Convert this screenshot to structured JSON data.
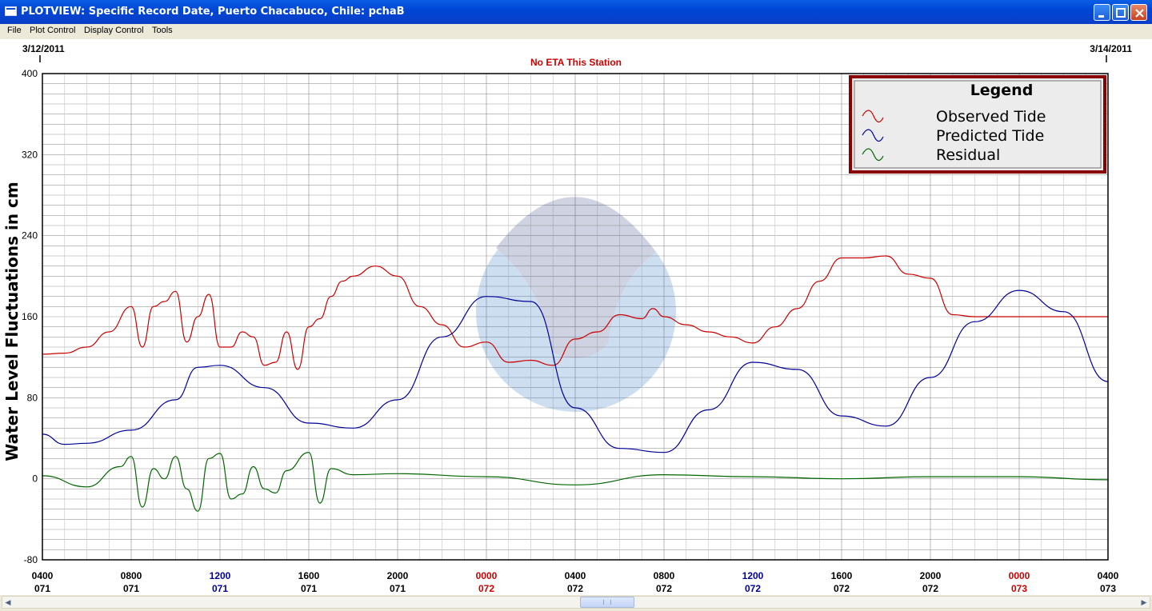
{
  "window": {
    "title": "PLOTVIEW: Specific Record Date, Puerto Chacabuco, Chile: pchaB",
    "menu": [
      "File",
      "Plot Control",
      "Display Control",
      "Tools"
    ]
  },
  "header": {
    "date_start": "3/12/2011",
    "date_end": "3/14/2011",
    "eta_text": "No ETA This Station"
  },
  "colors": {
    "observed": "#cc0000",
    "predicted": "#000099",
    "residual": "#006600",
    "day_change": "#cc0000",
    "noon": "#000099",
    "legend_border": "#880000"
  },
  "chart_data": {
    "type": "line",
    "title": "",
    "ylabel": "Water Level Fluctuations in cm",
    "xlabel": "",
    "ylim": [
      -80,
      400
    ],
    "yticks": [
      400,
      320,
      240,
      160,
      80,
      0,
      -80
    ],
    "xlim_hours": [
      0,
      48
    ],
    "grid": true,
    "x_tick_labels": [
      {
        "time": "0400",
        "day": "071"
      },
      {
        "time": "0800",
        "day": "071"
      },
      {
        "time": "1200",
        "day": "071"
      },
      {
        "time": "1600",
        "day": "071"
      },
      {
        "time": "2000",
        "day": "071"
      },
      {
        "time": "0000",
        "day": "072"
      },
      {
        "time": "0400",
        "day": "072"
      },
      {
        "time": "0800",
        "day": "072"
      },
      {
        "time": "1200",
        "day": "072"
      },
      {
        "time": "1600",
        "day": "072"
      },
      {
        "time": "2000",
        "day": "072"
      },
      {
        "time": "0000",
        "day": "073"
      },
      {
        "time": "0400",
        "day": "073"
      }
    ],
    "legend": {
      "title": "Legend",
      "position": "top-right",
      "entries": [
        "Observed Tide",
        "Predicted Tide",
        "Residual"
      ]
    },
    "series": [
      {
        "name": "Observed Tide",
        "x": [
          "071 0400",
          "071 0500",
          "071 0600",
          "071 0700",
          "071 0800",
          "071 0830",
          "071 0900",
          "071 0930",
          "071 1000",
          "071 1030",
          "071 1100",
          "071 1130",
          "071 1200",
          "071 1230",
          "071 1300",
          "071 1330",
          "071 1400",
          "071 1430",
          "071 1500",
          "071 1530",
          "071 1600",
          "071 1630",
          "071 1700",
          "071 1730",
          "071 1800",
          "071 1900",
          "071 2000",
          "071 2100",
          "071 2200",
          "071 2300",
          "072 0000",
          "072 0100",
          "072 0200",
          "072 0300",
          "072 0400",
          "072 0500",
          "072 0600",
          "072 0700",
          "072 0730",
          "072 0800",
          "072 0900",
          "072 1000",
          "072 1100",
          "072 1200",
          "072 1300",
          "072 1400",
          "072 1500",
          "072 1600",
          "072 1700",
          "072 1800",
          "072 1900",
          "072 2000",
          "072 2100",
          "072 2200",
          "072 2300",
          "073 0000",
          "073 0100",
          "073 0200",
          "073 0300",
          "073 0400"
        ],
        "values": [
          123,
          124,
          130,
          145,
          170,
          130,
          170,
          175,
          185,
          135,
          160,
          182,
          130,
          130,
          145,
          140,
          112,
          115,
          145,
          108,
          150,
          158,
          180,
          195,
          200,
          210,
          200,
          170,
          152,
          130,
          135,
          115,
          117,
          112,
          138,
          145,
          162,
          158,
          168,
          160,
          152,
          145,
          140,
          134,
          150,
          168,
          195,
          218,
          218,
          220,
          202,
          198,
          162,
          160,
          160,
          160,
          160,
          160,
          160,
          160
        ]
      },
      {
        "name": "Predicted Tide",
        "amplitudes": "two semidiurnal cycles",
        "x": [
          "071 0400",
          "071 0500",
          "071 0600",
          "071 0800",
          "071 1000",
          "071 1100",
          "071 1200",
          "071 1400",
          "071 1600",
          "071 1800",
          "071 2000",
          "071 2200",
          "072 0000",
          "072 0200",
          "072 0400",
          "072 0600",
          "072 0800",
          "072 1000",
          "072 1200",
          "072 1400",
          "072 1600",
          "072 1800",
          "072 2000",
          "072 2200",
          "073 0000",
          "073 0200",
          "073 0400"
        ],
        "values": [
          44,
          34,
          35,
          48,
          78,
          110,
          112,
          90,
          55,
          50,
          78,
          140,
          180,
          175,
          70,
          30,
          26,
          68,
          115,
          108,
          62,
          52,
          100,
          155,
          186,
          165,
          96
        ]
      },
      {
        "name": "Residual",
        "x": [
          "071 0400",
          "071 0600",
          "071 0730",
          "071 0800",
          "071 0830",
          "071 0900",
          "071 0930",
          "071 1000",
          "071 1030",
          "071 1100",
          "071 1130",
          "071 1200",
          "071 1230",
          "071 1300",
          "071 1330",
          "071 1400",
          "071 1430",
          "071 1500",
          "071 1600",
          "071 1630",
          "071 1700",
          "071 1800",
          "071 2000",
          "072 0000",
          "072 0400",
          "072 0800",
          "072 1200",
          "072 1600",
          "072 2000",
          "073 0000",
          "073 0400"
        ],
        "values": [
          3,
          -8,
          12,
          22,
          -28,
          10,
          0,
          22,
          -10,
          -32,
          20,
          25,
          -20,
          -15,
          12,
          -10,
          -14,
          8,
          26,
          -24,
          10,
          4,
          5,
          2,
          -6,
          4,
          2,
          0,
          2,
          2,
          -1
        ]
      }
    ]
  }
}
